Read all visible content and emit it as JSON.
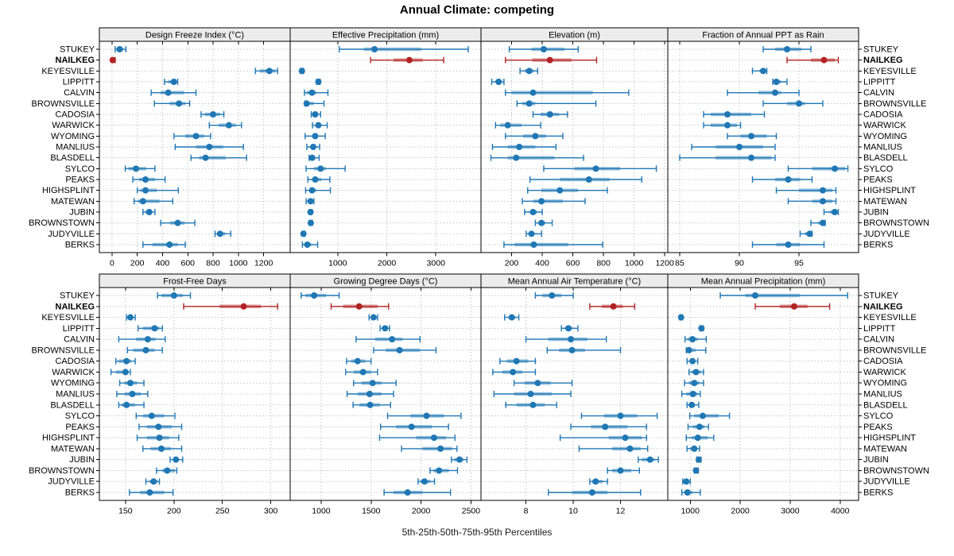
{
  "title": "Annual Climate: competing",
  "caption": "5th-25th-50th-75th-95th Percentiles",
  "colors": {
    "series": "#1f77b4",
    "highlight": "#b22222",
    "strip_bg": "#ececec",
    "strip_border": "#000000",
    "panel_border": "#000000",
    "grid": "#c4c4c4",
    "text": "#000000"
  },
  "sites": [
    "STUKEY",
    "NAILKEG",
    "KEYESVILLE",
    "LIPPITT",
    "CALVIN",
    "BROWNSVILLE",
    "CADOSIA",
    "WARWICK",
    "WYOMING",
    "MANLIUS",
    "BLASDELL",
    "SYLCO",
    "PEAKS",
    "HIGHSPLINT",
    "MATEWAN",
    "JUBIN",
    "BROWNSTOWN",
    "JUDYVILLE",
    "BERKS"
  ],
  "highlight_site": "NAILKEG",
  "chart_data": {
    "type": "trellis-dotplot-percentiles",
    "percentiles": [
      5,
      25,
      50,
      75,
      95
    ],
    "legend_position": "none",
    "grid": "dotted",
    "panels": [
      {
        "title": "Design Freeze Index (°C)",
        "row": 0,
        "col": 0,
        "domain": [
          -100,
          1410
        ],
        "ticks": [
          0,
          200,
          400,
          600,
          800,
          1000,
          1200
        ],
        "values": [
          [
            25,
            40,
            60,
            90,
            110
          ],
          [
            0,
            0,
            5,
            15,
            25
          ],
          [
            1135,
            1170,
            1245,
            1295,
            1310
          ],
          [
            415,
            445,
            490,
            505,
            520
          ],
          [
            310,
            385,
            445,
            570,
            665
          ],
          [
            335,
            455,
            530,
            580,
            615
          ],
          [
            705,
            735,
            800,
            855,
            885
          ],
          [
            770,
            845,
            925,
            980,
            1025
          ],
          [
            490,
            580,
            665,
            730,
            780
          ],
          [
            500,
            665,
            770,
            880,
            1040
          ],
          [
            625,
            690,
            740,
            900,
            1065
          ],
          [
            105,
            130,
            190,
            270,
            340
          ],
          [
            165,
            215,
            265,
            340,
            420
          ],
          [
            200,
            225,
            265,
            355,
            525
          ],
          [
            175,
            205,
            245,
            375,
            480
          ],
          [
            245,
            265,
            295,
            315,
            340
          ],
          [
            385,
            460,
            520,
            575,
            655
          ],
          [
            815,
            840,
            855,
            895,
            940
          ],
          [
            245,
            320,
            455,
            520,
            580
          ]
        ]
      },
      {
        "title": "Effective Precipitation (mm)",
        "row": 0,
        "col": 1,
        "domain": [
          30,
          3920
        ],
        "ticks": [
          1000,
          2000,
          3000
        ],
        "values": [
          [
            1030,
            1530,
            1750,
            2700,
            3660
          ],
          [
            1670,
            2140,
            2460,
            2730,
            3160
          ],
          [
            240,
            260,
            270,
            285,
            300
          ],
          [
            570,
            590,
            605,
            620,
            640
          ],
          [
            320,
            360,
            475,
            565,
            800
          ],
          [
            335,
            345,
            365,
            510,
            720
          ],
          [
            460,
            500,
            540,
            580,
            650
          ],
          [
            485,
            560,
            605,
            660,
            785
          ],
          [
            335,
            480,
            540,
            590,
            745
          ],
          [
            370,
            450,
            500,
            550,
            630
          ],
          [
            415,
            450,
            480,
            540,
            620
          ],
          [
            355,
            515,
            650,
            760,
            1150
          ],
          [
            390,
            510,
            540,
            665,
            840
          ],
          [
            345,
            430,
            475,
            560,
            850
          ],
          [
            355,
            410,
            445,
            480,
            515
          ],
          [
            420,
            435,
            445,
            455,
            470
          ],
          [
            420,
            440,
            450,
            465,
            480
          ],
          [
            280,
            290,
            300,
            310,
            330
          ],
          [
            280,
            320,
            380,
            460,
            590
          ]
        ]
      },
      {
        "title": "Elevation (m)",
        "row": 0,
        "col": 2,
        "domain": [
          0,
          1220
        ],
        "ticks": [
          200,
          400,
          600,
          800,
          1000,
          1200
        ],
        "values": [
          [
            185,
            330,
            410,
            545,
            635
          ],
          [
            160,
            335,
            450,
            590,
            755
          ],
          [
            255,
            285,
            315,
            345,
            370
          ],
          [
            70,
            95,
            115,
            135,
            150
          ],
          [
            160,
            200,
            340,
            730,
            965
          ],
          [
            235,
            270,
            315,
            355,
            750
          ],
          [
            340,
            390,
            450,
            510,
            565
          ],
          [
            95,
            125,
            175,
            265,
            390
          ],
          [
            160,
            275,
            355,
            425,
            535
          ],
          [
            75,
            175,
            250,
            355,
            490
          ],
          [
            65,
            175,
            230,
            480,
            670
          ],
          [
            410,
            610,
            750,
            910,
            1145
          ],
          [
            320,
            515,
            705,
            840,
            1050
          ],
          [
            305,
            395,
            515,
            635,
            825
          ],
          [
            270,
            340,
            395,
            535,
            680
          ],
          [
            285,
            320,
            340,
            365,
            400
          ],
          [
            355,
            375,
            395,
            420,
            465
          ],
          [
            295,
            315,
            330,
            350,
            395
          ],
          [
            150,
            220,
            345,
            570,
            795
          ]
        ]
      },
      {
        "title": "Fraction of Annual PPT as Rain",
        "row": 0,
        "col": 3,
        "domain": [
          84,
          100
        ],
        "ticks": [
          85,
          90,
          95
        ],
        "values": [
          [
            92,
            93,
            94,
            95.2,
            96
          ],
          [
            94,
            96,
            97.1,
            98,
            98.3
          ],
          [
            91.1,
            91.7,
            92,
            92.1,
            92.3
          ],
          [
            92.8,
            93,
            93.1,
            93.5,
            94
          ],
          [
            89,
            91.6,
            93,
            93.5,
            95
          ],
          [
            92,
            94,
            95,
            95.5,
            97
          ],
          [
            87,
            87.6,
            89,
            91,
            92.1
          ],
          [
            87,
            87.6,
            89,
            89.8,
            90.1
          ],
          [
            89,
            90.1,
            91,
            92.3,
            93.1
          ],
          [
            86,
            88,
            90,
            92,
            93
          ],
          [
            85,
            88,
            91,
            92.7,
            93
          ],
          [
            94.1,
            96.1,
            98,
            98.9,
            99.1
          ],
          [
            91.1,
            93,
            94.1,
            95.1,
            96.1
          ],
          [
            93.1,
            95,
            97,
            97.8,
            98.1
          ],
          [
            94.1,
            96.1,
            97,
            97.8,
            98.1
          ],
          [
            97.1,
            97.6,
            98,
            98.2,
            98.3
          ],
          [
            96,
            96.6,
            97,
            97.1,
            97.2
          ],
          [
            95.1,
            95.5,
            95.9,
            96,
            96.1
          ],
          [
            91.1,
            93.1,
            94.1,
            95.1,
            97.1
          ]
        ]
      },
      {
        "title": "Frost-Free Days",
        "row": 1,
        "col": 0,
        "domain": [
          123,
          320
        ],
        "ticks": [
          150,
          200,
          250,
          300
        ],
        "values": [
          [
            183,
            187,
            200,
            209,
            217
          ],
          [
            210,
            247,
            272,
            290,
            307
          ],
          [
            151,
            153,
            155,
            157,
            160
          ],
          [
            163,
            168,
            180,
            185,
            188
          ],
          [
            143,
            161,
            173,
            181,
            191
          ],
          [
            152,
            158,
            171,
            180,
            188
          ],
          [
            140,
            143,
            151,
            156,
            160
          ],
          [
            135,
            140,
            150,
            153,
            155
          ],
          [
            144,
            149,
            155,
            162,
            169
          ],
          [
            141,
            149,
            157,
            166,
            173
          ],
          [
            143,
            146,
            151,
            160,
            169
          ],
          [
            161,
            168,
            177,
            190,
            201
          ],
          [
            164,
            172,
            184,
            198,
            208
          ],
          [
            162,
            172,
            185,
            195,
            205
          ],
          [
            168,
            176,
            187,
            197,
            208
          ],
          [
            196,
            199,
            202,
            205,
            209
          ],
          [
            182,
            188,
            193,
            201,
            203
          ],
          [
            171,
            175,
            179,
            183,
            185
          ],
          [
            154,
            165,
            175,
            190,
            199
          ]
        ]
      },
      {
        "title": "Growing Degree Days (°C)",
        "row": 1,
        "col": 1,
        "domain": [
          690,
          2600
        ],
        "ticks": [
          1000,
          1500,
          2000,
          2500
        ],
        "values": [
          [
            800,
            845,
            930,
            1050,
            1180
          ],
          [
            1100,
            1220,
            1380,
            1565,
            1675
          ],
          [
            1480,
            1505,
            1525,
            1545,
            1565
          ],
          [
            1590,
            1615,
            1640,
            1665,
            1685
          ],
          [
            1350,
            1540,
            1710,
            1815,
            1990
          ],
          [
            1525,
            1645,
            1785,
            1990,
            2150
          ],
          [
            1255,
            1300,
            1365,
            1445,
            1500
          ],
          [
            1245,
            1325,
            1420,
            1500,
            1565
          ],
          [
            1325,
            1405,
            1515,
            1605,
            1750
          ],
          [
            1260,
            1365,
            1485,
            1605,
            1725
          ],
          [
            1320,
            1385,
            1490,
            1590,
            1695
          ],
          [
            1665,
            1895,
            2055,
            2230,
            2400
          ],
          [
            1595,
            1750,
            1905,
            2110,
            2275
          ],
          [
            1585,
            1950,
            2130,
            2250,
            2340
          ],
          [
            1805,
            2015,
            2195,
            2310,
            2360
          ],
          [
            2305,
            2330,
            2385,
            2425,
            2460
          ],
          [
            2090,
            2125,
            2180,
            2280,
            2365
          ],
          [
            1970,
            1995,
            2035,
            2095,
            2135
          ],
          [
            1630,
            1725,
            1865,
            2015,
            2295
          ]
        ]
      },
      {
        "title": "Mean Annual Air Temperature (°C)",
        "row": 1,
        "col": 2,
        "domain": [
          6.1,
          14.0
        ],
        "ticks": [
          8,
          10,
          12
        ],
        "values": [
          [
            8.4,
            8.7,
            9.1,
            9.5,
            10
          ],
          [
            10.7,
            11.2,
            11.7,
            12.1,
            12.6
          ],
          [
            7.1,
            7.3,
            7.4,
            7.55,
            7.7
          ],
          [
            9.5,
            9.65,
            9.8,
            9.95,
            10.2
          ],
          [
            8,
            8.95,
            9.9,
            10.6,
            11.4
          ],
          [
            8.9,
            9.4,
            9.95,
            10.5,
            12
          ],
          [
            6.9,
            7.2,
            7.6,
            8.1,
            8.4
          ],
          [
            6.6,
            7,
            7.45,
            7.85,
            8.4
          ],
          [
            7.5,
            7.95,
            8.5,
            9.05,
            9.95
          ],
          [
            6.65,
            7.5,
            8.2,
            9.1,
            9.9
          ],
          [
            7.15,
            7.6,
            8.3,
            8.8,
            9.3
          ],
          [
            10.35,
            11.3,
            12,
            12.7,
            13.55
          ],
          [
            9.9,
            10.75,
            11.35,
            12.3,
            13.1
          ],
          [
            9.45,
            11.5,
            12.2,
            12.9,
            13.1
          ],
          [
            10.25,
            11.65,
            12.4,
            12.85,
            13.15
          ],
          [
            12.75,
            12.9,
            13.25,
            13.45,
            13.6
          ],
          [
            11.45,
            11.65,
            12,
            12.45,
            12.8
          ],
          [
            10.7,
            10.8,
            10.95,
            11.25,
            11.45
          ],
          [
            8.95,
            9.95,
            10.8,
            11.45,
            12.85
          ]
        ]
      },
      {
        "title": "Mean Annual Precipitation (mm)",
        "row": 1,
        "col": 3,
        "domain": [
          550,
          4370
        ],
        "ticks": [
          1000,
          2000,
          3000,
          4000
        ],
        "values": [
          [
            1600,
            2100,
            2300,
            3200,
            4150
          ],
          [
            2300,
            2790,
            3080,
            3350,
            3790
          ],
          [
            790,
            805,
            815,
            825,
            840
          ],
          [
            1190,
            1210,
            1225,
            1240,
            1260
          ],
          [
            895,
            945,
            1045,
            1150,
            1320
          ],
          [
            920,
            940,
            975,
            1105,
            1310
          ],
          [
            935,
            990,
            1045,
            1090,
            1150
          ],
          [
            975,
            1025,
            1115,
            1215,
            1265
          ],
          [
            885,
            975,
            1080,
            1185,
            1265
          ],
          [
            830,
            920,
            1055,
            1150,
            1200
          ],
          [
            935,
            985,
            1030,
            1090,
            1170
          ],
          [
            990,
            1080,
            1250,
            1570,
            1785
          ],
          [
            955,
            1050,
            1185,
            1285,
            1365
          ],
          [
            920,
            1025,
            1150,
            1350,
            1470
          ],
          [
            935,
            1000,
            1080,
            1135,
            1185
          ],
          [
            1130,
            1155,
            1170,
            1190,
            1215
          ],
          [
            1080,
            1100,
            1115,
            1140,
            1160
          ],
          [
            850,
            890,
            920,
            960,
            1000
          ],
          [
            830,
            885,
            945,
            1045,
            1200
          ]
        ]
      }
    ]
  }
}
